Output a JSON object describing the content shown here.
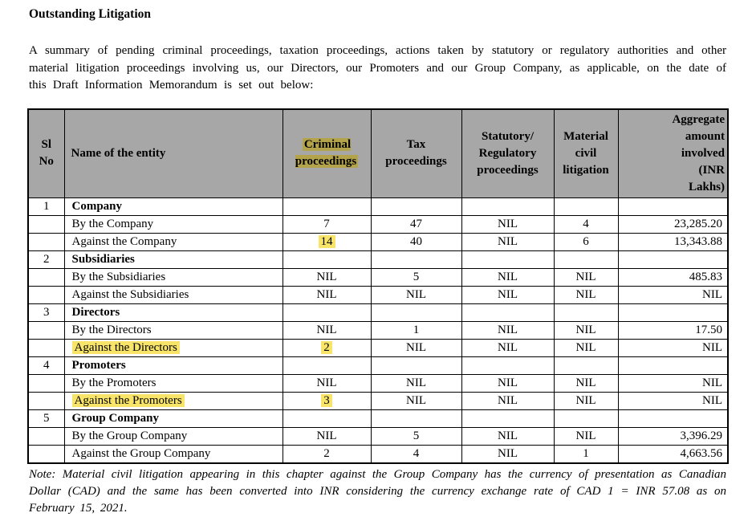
{
  "page": {
    "title": "Outstanding Litigation",
    "intro": "A summary of pending criminal proceedings, taxation proceedings, actions taken by statutory or regulatory authorities and other material litigation proceedings involving us, our Directors, our Promoters and our Group Company, as applicable, on the date of this Draft Information Memorandum is set out below:",
    "note": "Note: Material civil litigation appearing in this chapter against the Group Company has the currency of presentation as Canadian Dollar (CAD) and the same has been converted into INR considering the currency exchange rate of CAD 1 = INR 57.08 as on February 15, 2021."
  },
  "table": {
    "headers": [
      {
        "key": "sl-no",
        "text": "Sl\nNo",
        "highlight": false,
        "align": "center"
      },
      {
        "key": "entity-name",
        "text": "Name of the entity",
        "highlight": false,
        "align": "left"
      },
      {
        "key": "criminal-proceedings",
        "text": "Criminal\nproceedings",
        "highlight": true,
        "align": "center"
      },
      {
        "key": "tax-proceedings",
        "text": "Tax\nproceedings",
        "highlight": false,
        "align": "center"
      },
      {
        "key": "statutory-regulatory-proceedings",
        "text": "Statutory/\nRegulatory\nproceedings",
        "highlight": false,
        "align": "center"
      },
      {
        "key": "material-civil-litigation",
        "text": "Material\ncivil\nlitigation",
        "highlight": false,
        "align": "center"
      },
      {
        "key": "aggregate-amount",
        "text": "Aggregate\namount\ninvolved\n(INR\nLakhs)",
        "highlight": false,
        "align": "right"
      }
    ],
    "rows": [
      {
        "sl": "1",
        "name": "Company",
        "group": true,
        "values": [
          "",
          "",
          "",
          "",
          ""
        ]
      },
      {
        "sl": "",
        "name": "By the Company",
        "group": false,
        "values": [
          "7",
          "47",
          "NIL",
          "4",
          "23,285.20"
        ]
      },
      {
        "sl": "",
        "name": "Against the Company",
        "group": false,
        "values": [
          "14",
          "40",
          "NIL",
          "6",
          "13,343.88"
        ],
        "highlight_values": [
          0
        ]
      },
      {
        "sl": "2",
        "name": "Subsidiaries",
        "group": true,
        "values": [
          "",
          "",
          "",
          "",
          ""
        ]
      },
      {
        "sl": "",
        "name": "By the Subsidiaries",
        "group": false,
        "values": [
          "NIL",
          "5",
          "NIL",
          "NIL",
          "485.83"
        ]
      },
      {
        "sl": "",
        "name": "Against the Subsidiaries",
        "group": false,
        "values": [
          "NIL",
          "NIL",
          "NIL",
          "NIL",
          "NIL"
        ]
      },
      {
        "sl": "3",
        "name": "Directors",
        "group": true,
        "values": [
          "",
          "",
          "",
          "",
          ""
        ]
      },
      {
        "sl": "",
        "name": "By the Directors",
        "group": false,
        "values": [
          "NIL",
          "1",
          "NIL",
          "NIL",
          "17.50"
        ]
      },
      {
        "sl": "",
        "name": "Against the Directors",
        "group": false,
        "highlight_name": true,
        "values": [
          "2",
          "NIL",
          "NIL",
          "NIL",
          "NIL"
        ],
        "highlight_values": [
          0
        ]
      },
      {
        "sl": "4",
        "name": "Promoters",
        "group": true,
        "values": [
          "",
          "",
          "",
          "",
          ""
        ]
      },
      {
        "sl": "",
        "name": "By the Promoters",
        "group": false,
        "values": [
          "NIL",
          "NIL",
          "NIL",
          "NIL",
          "NIL"
        ]
      },
      {
        "sl": "",
        "name": "Against the Promoters",
        "group": false,
        "highlight_name": true,
        "values": [
          "3",
          "NIL",
          "NIL",
          "NIL",
          "NIL"
        ],
        "highlight_values": [
          0
        ]
      },
      {
        "sl": "5",
        "name": "Group Company",
        "group": true,
        "values": [
          "",
          "",
          "",
          "",
          ""
        ]
      },
      {
        "sl": "",
        "name": "By the Group Company",
        "group": false,
        "values": [
          "NIL",
          "5",
          "NIL",
          "NIL",
          "3,396.29"
        ]
      },
      {
        "sl": "",
        "name": "Against the Group Company",
        "group": false,
        "values": [
          "2",
          "4",
          "NIL",
          "1",
          "4,663.56"
        ]
      }
    ]
  },
  "colors": {
    "header_bg": "#a7a7a7",
    "highlight_body": "#f7e469",
    "highlight_header": "#b3a44c",
    "border": "#000000"
  }
}
